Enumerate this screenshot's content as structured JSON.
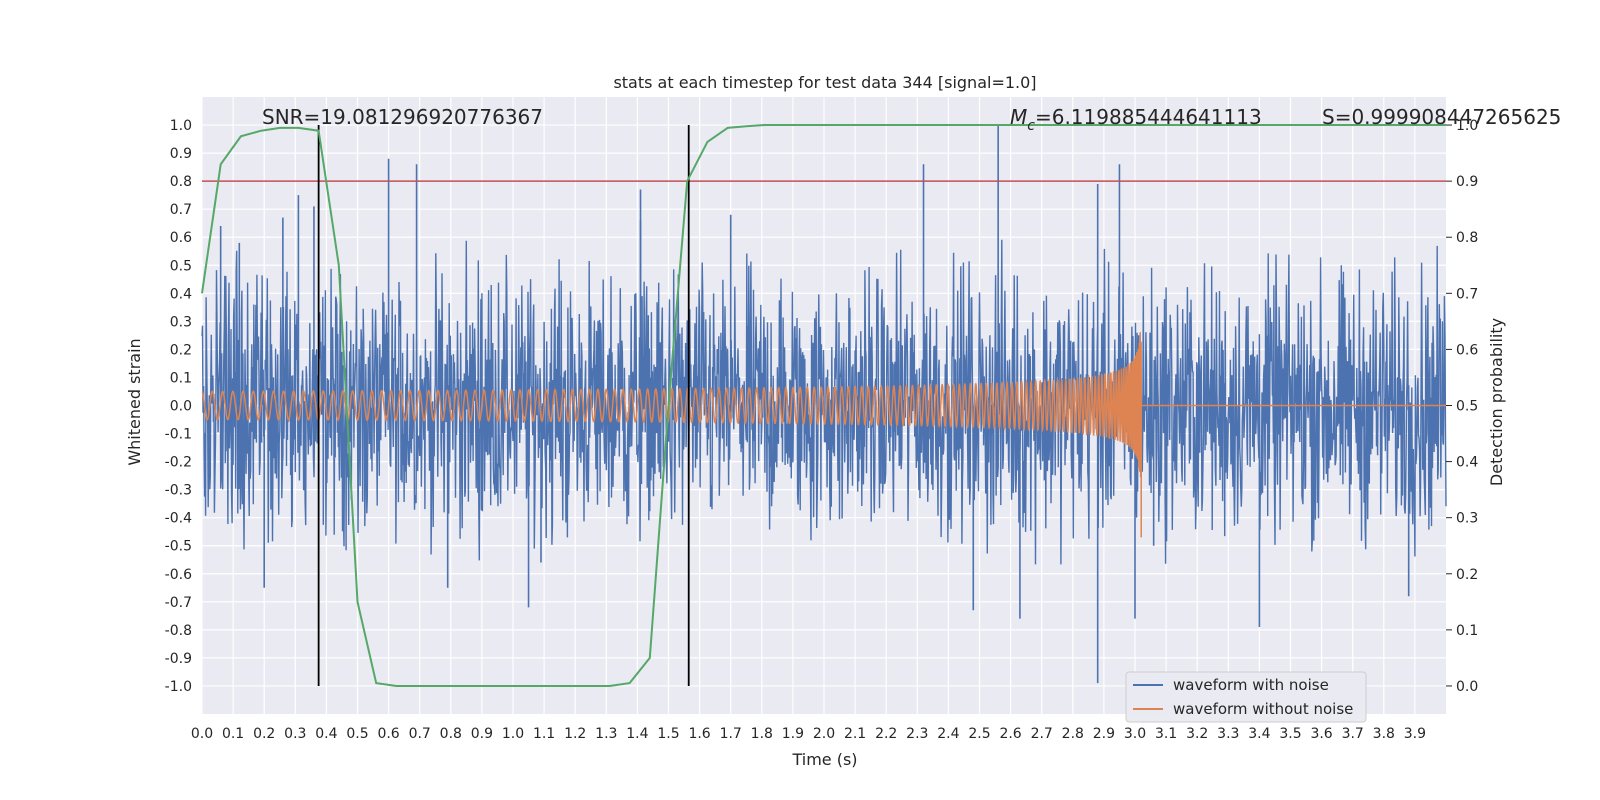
{
  "chart_data": {
    "type": "line",
    "title": "stats at each timestep for test data 344 [signal=1.0]",
    "xlabel": "Time (s)",
    "ylabel": "Whitened strain",
    "ylabel_right": "Detection probability",
    "xlim": [
      0.0,
      4.0
    ],
    "ylim": [
      -1.1,
      1.1
    ],
    "ylim_right": [
      -0.05,
      1.05
    ],
    "x_ticks": [
      0.0,
      0.1,
      0.2,
      0.3,
      0.4,
      0.5,
      0.6,
      0.7,
      0.8,
      0.9,
      1.0,
      1.1,
      1.2,
      1.3,
      1.4,
      1.5,
      1.6,
      1.7,
      1.8,
      1.9,
      2.0,
      2.1,
      2.2,
      2.3,
      2.4,
      2.5,
      2.6,
      2.7,
      2.8,
      2.9,
      3.0,
      3.1,
      3.2,
      3.3,
      3.4,
      3.5,
      3.6,
      3.7,
      3.8,
      3.9
    ],
    "y_ticks": [
      1.0,
      0.9,
      0.8,
      0.7,
      0.6,
      0.5,
      0.4,
      0.3,
      0.2,
      0.1,
      0.0,
      -0.1,
      -0.2,
      -0.3,
      -0.4,
      -0.5,
      -0.6,
      -0.7,
      -0.8,
      -0.9,
      -1.0
    ],
    "y_ticks_right": [
      1.0,
      0.9,
      0.8,
      0.7,
      0.6,
      0.5,
      0.4,
      0.3,
      0.2,
      0.1,
      0.0
    ],
    "grid": true,
    "legend_position": "bottom-right",
    "annotations": {
      "snr": "SNR=19.081296920776367",
      "mc_symbol": "M",
      "mc_sub": "c",
      "mc_value": "=6.119885444641113",
      "s": "S=0.999908447265625"
    },
    "threshold": {
      "y_right": 0.9,
      "color": "#c44e52"
    },
    "vertical_lines": [
      0.375,
      1.565
    ],
    "series": [
      {
        "name": "waveform with noise",
        "color": "#4c72b0",
        "noise_amplitude": 0.28,
        "peaks": [
          [
            0.06,
            0.64
          ],
          [
            0.12,
            0.58
          ],
          [
            0.26,
            0.67
          ],
          [
            0.31,
            0.75
          ],
          [
            0.36,
            0.71
          ],
          [
            0.6,
            0.88
          ],
          [
            0.69,
            0.86
          ],
          [
            1.41,
            0.66
          ],
          [
            1.41,
            0.77
          ],
          [
            1.7,
            0.68
          ],
          [
            2.32,
            0.86
          ],
          [
            2.56,
            1.0
          ],
          [
            2.88,
            0.79
          ],
          [
            2.95,
            0.86
          ],
          [
            1.09,
            -0.56
          ],
          [
            0.2,
            -0.65
          ],
          [
            0.79,
            -0.65
          ],
          [
            1.05,
            -0.72
          ],
          [
            2.48,
            -0.73
          ],
          [
            2.63,
            -0.76
          ],
          [
            2.88,
            -0.99
          ],
          [
            3.0,
            -0.76
          ],
          [
            3.4,
            -0.79
          ],
          [
            3.06,
            -0.5
          ],
          [
            3.88,
            -0.68
          ]
        ]
      },
      {
        "name": "waveform without noise",
        "color": "#dd8452",
        "chirp_start_amplitude": 0.05,
        "chirp_peak_amplitude": 0.37,
        "merger_time": 3.02,
        "start_frequency_hz": 30
      },
      {
        "name": "",
        "color": "#55a868",
        "axis": "right",
        "x": [
          0.0,
          0.06,
          0.125,
          0.19,
          0.25,
          0.31,
          0.375,
          0.44,
          0.5,
          0.56,
          0.625,
          0.69,
          0.75,
          0.81,
          0.875,
          0.94,
          1.0,
          1.06,
          1.125,
          1.19,
          1.25,
          1.31,
          1.375,
          1.44,
          1.5,
          1.56,
          1.625,
          1.69,
          1.75,
          1.81,
          1.875,
          1.94,
          2.0,
          2.5,
          3.0,
          3.5,
          4.0
        ],
        "values": [
          0.7,
          0.93,
          0.98,
          0.99,
          0.995,
          0.995,
          0.99,
          0.75,
          0.15,
          0.005,
          0.0,
          0.0,
          0.0,
          0.0,
          0.0,
          0.0,
          0.0,
          0.0,
          0.0,
          0.0,
          0.0,
          0.0,
          0.005,
          0.05,
          0.5,
          0.9,
          0.97,
          0.995,
          0.998,
          1.0,
          1.0,
          1.0,
          1.0,
          1.0,
          1.0,
          1.0,
          1.0
        ]
      }
    ]
  }
}
